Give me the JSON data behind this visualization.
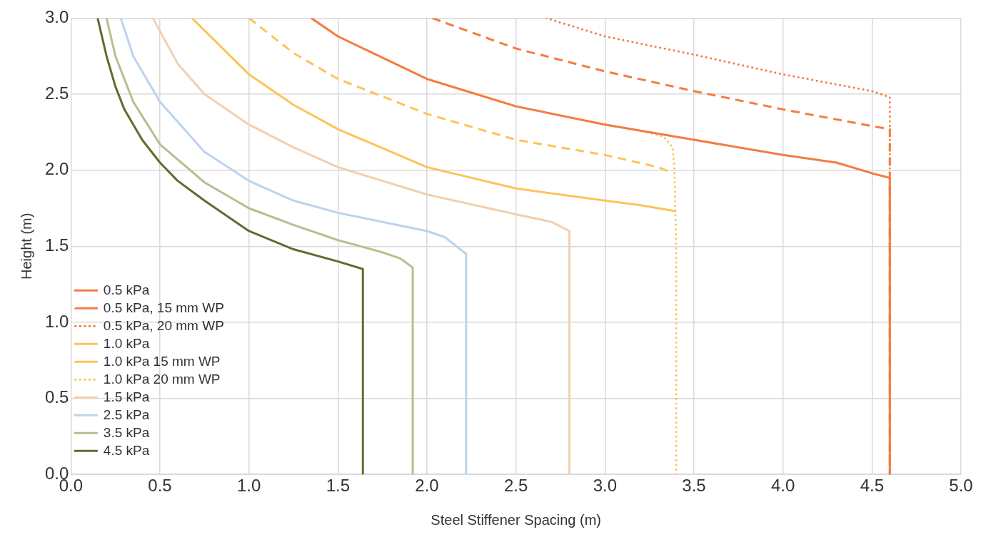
{
  "chart_data": {
    "type": "line",
    "xlabel": "Steel Stiffener Spacing (m)",
    "ylabel": "Height (m)",
    "xlim": [
      0,
      5
    ],
    "ylim": [
      0,
      3
    ],
    "xticks": [
      {
        "value": 0,
        "label": "0.0"
      },
      0.5,
      {
        "value": 1,
        "label": "1.0"
      },
      1.5,
      {
        "value": 2,
        "label": "2.0"
      },
      2.5,
      {
        "value": 3,
        "label": "3.0"
      },
      3.5,
      {
        "value": 4,
        "label": "4.0"
      },
      4.5,
      {
        "value": 5,
        "label": "5.0"
      }
    ],
    "yticks": [
      {
        "value": 0,
        "label": "0.0"
      },
      0.5,
      {
        "value": 1,
        "label": "1.0"
      },
      1.5,
      {
        "value": 2,
        "label": "2.0"
      },
      2.5,
      {
        "value": 3,
        "label": "3.0"
      }
    ],
    "grid": true,
    "legend": "bottom left",
    "marker": "none",
    "series": [
      {
        "name": "0.5 kPa",
        "color": "#f47c42",
        "line_style": "solid",
        "x": [
          1.35,
          1.5,
          2.0,
          2.5,
          3.0,
          3.5,
          4.0,
          4.3,
          4.5,
          4.6,
          4.6
        ],
        "values": [
          3.0,
          2.88,
          2.6,
          2.42,
          2.3,
          2.2,
          2.1,
          2.05,
          1.98,
          1.95,
          0
        ]
      },
      {
        "name": "0.5 kPa, 15 mm WP",
        "color": "#f47c42",
        "line_style": "dashed",
        "x": [
          2.03,
          2.5,
          3.0,
          3.5,
          4.0,
          4.5,
          4.6,
          4.6
        ],
        "values": [
          3.0,
          2.8,
          2.65,
          2.52,
          2.4,
          2.29,
          2.27,
          0
        ]
      },
      {
        "name": "0.5 kPa, 20 mm WP",
        "color": "#f47c42",
        "line_style": "dotted",
        "x": [
          2.67,
          3.0,
          3.5,
          4.0,
          4.5,
          4.6,
          4.6
        ],
        "values": [
          3.0,
          2.88,
          2.76,
          2.63,
          2.52,
          2.48,
          0
        ]
      },
      {
        "name": "1.0 kPa",
        "color": "#fdc35a",
        "line_style": "solid",
        "x": [
          0.68,
          1.0,
          1.25,
          1.5,
          2.0,
          2.5,
          3.0,
          3.2,
          3.4
        ],
        "values": [
          3.0,
          2.63,
          2.43,
          2.27,
          2.02,
          1.88,
          1.8,
          1.77,
          1.73
        ]
      },
      {
        "name": "1.0 kPa 15 mm WP",
        "color": "#fdc35a",
        "line_style": "dashed",
        "x": [
          1.0,
          1.25,
          1.5,
          2.0,
          2.5,
          3.0,
          3.3,
          3.38
        ],
        "values": [
          3.0,
          2.77,
          2.6,
          2.37,
          2.2,
          2.1,
          2.02,
          1.98
        ]
      },
      {
        "name": "1.0 kPa 20 mm WP",
        "color": "#fdc35a",
        "line_style": "dotted",
        "x": [
          1.35,
          1.5,
          2.0,
          2.5,
          3.0,
          3.2,
          3.33,
          3.38,
          3.39,
          3.4,
          3.4
        ],
        "values": [
          3.0,
          2.88,
          2.6,
          2.42,
          2.3,
          2.26,
          2.22,
          2.15,
          2.0,
          1.5,
          0
        ]
      },
      {
        "name": "1.5 kPa",
        "color": "#f3cfb0",
        "line_style": "solid",
        "x": [
          0.46,
          0.6,
          0.75,
          1.0,
          1.25,
          1.5,
          2.0,
          2.5,
          2.7,
          2.8,
          2.8
        ],
        "values": [
          3.0,
          2.7,
          2.5,
          2.3,
          2.15,
          2.02,
          1.84,
          1.71,
          1.66,
          1.6,
          0
        ]
      },
      {
        "name": "2.5 kPa",
        "color": "#bcd3ec",
        "line_style": "solid",
        "x": [
          0.28,
          0.35,
          0.5,
          0.75,
          1.0,
          1.25,
          1.5,
          1.75,
          2.0,
          2.1,
          2.22,
          2.22
        ],
        "values": [
          3.0,
          2.75,
          2.45,
          2.12,
          1.93,
          1.8,
          1.72,
          1.66,
          1.6,
          1.56,
          1.45,
          0
        ]
      },
      {
        "name": "3.5 kPa",
        "color": "#b5bf8f",
        "line_style": "solid",
        "x": [
          0.2,
          0.25,
          0.35,
          0.5,
          0.75,
          1.0,
          1.25,
          1.5,
          1.75,
          1.85,
          1.92,
          1.92
        ],
        "values": [
          3.0,
          2.75,
          2.45,
          2.17,
          1.92,
          1.75,
          1.64,
          1.54,
          1.46,
          1.42,
          1.36,
          0
        ]
      },
      {
        "name": "4.5 kPa",
        "color": "#636b2f",
        "line_style": "solid",
        "x": [
          0.15,
          0.2,
          0.25,
          0.3,
          0.4,
          0.5,
          0.6,
          0.75,
          1.0,
          1.25,
          1.5,
          1.64,
          1.64
        ],
        "values": [
          3.0,
          2.75,
          2.55,
          2.4,
          2.2,
          2.05,
          1.93,
          1.8,
          1.6,
          1.48,
          1.4,
          1.35,
          0
        ]
      }
    ]
  }
}
